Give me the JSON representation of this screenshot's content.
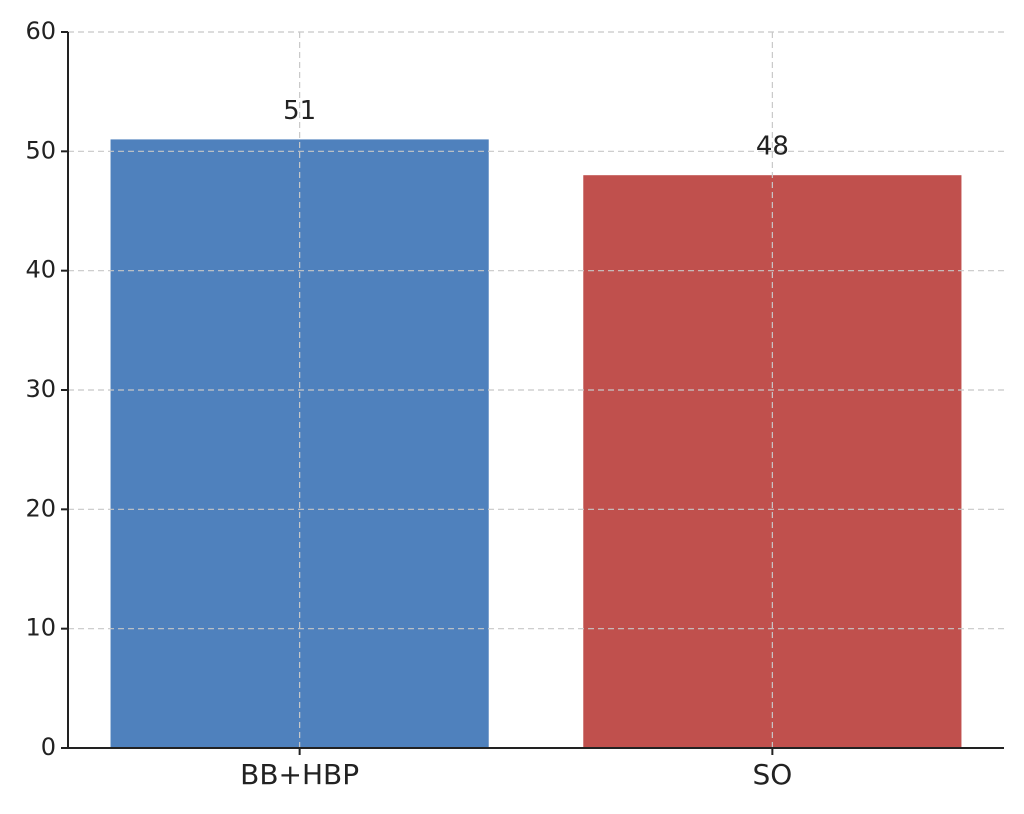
{
  "chart_data": {
    "type": "bar",
    "categories": [
      "BB+HBP",
      "SO"
    ],
    "values": [
      51,
      48
    ],
    "colors": [
      "#4f81bd",
      "#c0504d"
    ],
    "ylim": [
      0,
      60
    ],
    "yticks": [
      0,
      10,
      20,
      30,
      40,
      50,
      60
    ],
    "grid": true,
    "data_labels": true
  }
}
